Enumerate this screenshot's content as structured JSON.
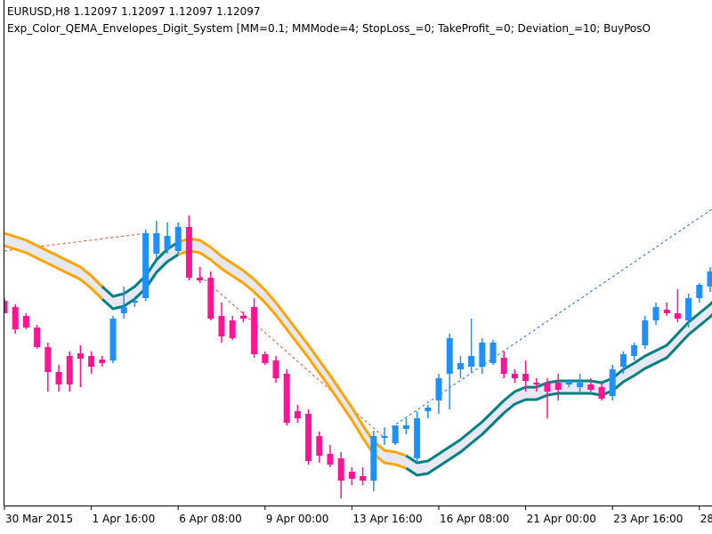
{
  "chart_data": {
    "type": "candlestick",
    "title": "EURUSD,H8  1.12097 1.12097 1.12097 1.12097",
    "subtitle": "Exp_Color_QEMA_Envelopes_Digit_System [MM=0.1; MMMode=4; StopLoss_=0; TakeProfit_=0; Deviation_=10; BuyPosO",
    "categories": [
      "30 Mar 2015",
      null,
      null,
      null,
      null,
      null,
      null,
      null,
      "1 Apr 16:00",
      null,
      null,
      null,
      null,
      null,
      null,
      null,
      "6 Apr 08:00",
      null,
      null,
      null,
      null,
      null,
      null,
      null,
      "9 Apr 00:00",
      null,
      null,
      null,
      null,
      null,
      null,
      null,
      "13 Apr 16:00",
      null,
      null,
      null,
      null,
      null,
      null,
      null,
      "16 Apr 08:00",
      null,
      null,
      null,
      null,
      null,
      null,
      null,
      "21 Apr 00:00",
      null,
      null,
      null,
      null,
      null,
      null,
      null,
      "23 Apr 16:00",
      null,
      null,
      null,
      null,
      null,
      null,
      null,
      "28",
      null,
      null
    ],
    "open": [
      1.0732,
      1.0725,
      1.0715,
      1.0702,
      1.068,
      1.0652,
      1.067,
      1.0673,
      1.067,
      1.0666,
      1.0665,
      1.0718,
      1.073,
      1.0735,
      1.0785,
      1.079,
      1.0788,
      1.0815,
      1.0758,
      1.0758,
      1.0715,
      1.071,
      1.0715,
      1.0725,
      1.0672,
      1.0665,
      1.065,
      1.0608,
      1.0605,
      1.058,
      1.056,
      1.0555,
      1.054,
      1.0535,
      1.053,
      1.0578,
      1.0572,
      1.0588,
      1.0555,
      1.0608,
      1.062,
      1.065,
      1.0655,
      1.0658,
      1.0658,
      1.0662,
      1.0668,
      1.065,
      1.065,
      1.064,
      1.064,
      1.064,
      1.0638,
      1.0635,
      1.0638,
      1.0635,
      1.0625,
      1.0658,
      1.067,
      1.0682,
      1.071,
      1.0722,
      1.0718,
      1.071,
      1.0735,
      1.0748,
      1.0758
    ],
    "high": [
      1.0735,
      1.0728,
      1.0718,
      1.0705,
      1.0685,
      1.066,
      1.0675,
      1.0682,
      1.0675,
      1.067,
      1.0715,
      1.0748,
      1.0735,
      1.0812,
      1.0822,
      1.082,
      1.082,
      1.0828,
      1.077,
      1.0765,
      1.073,
      1.0715,
      1.072,
      1.0735,
      1.0675,
      1.067,
      1.0655,
      1.0615,
      1.061,
      1.0585,
      1.057,
      1.0562,
      1.0545,
      1.0545,
      1.0586,
      1.059,
      1.0592,
      1.06,
      1.0608,
      1.0615,
      1.065,
      1.0695,
      1.067,
      1.0712,
      1.069,
      1.0688,
      1.0675,
      1.0655,
      1.0665,
      1.0645,
      1.0645,
      1.065,
      1.0642,
      1.065,
      1.0645,
      1.064,
      1.066,
      1.0675,
      1.0685,
      1.0715,
      1.073,
      1.073,
      1.0745,
      1.074,
      1.0752,
      1.077,
      1.08
    ],
    "low": [
      1.0718,
      1.0695,
      1.07,
      1.0678,
      1.063,
      1.063,
      1.063,
      1.0635,
      1.065,
      1.0658,
      1.0662,
      1.0712,
      1.0725,
      1.0732,
      1.078,
      1.0785,
      1.0785,
      1.0755,
      1.0752,
      1.071,
      1.0685,
      1.0688,
      1.0708,
      1.0668,
      1.066,
      1.064,
      1.0592,
      1.0595,
      1.0548,
      1.055,
      1.0545,
      1.051,
      1.0525,
      1.0525,
      1.0518,
      1.057,
      1.057,
      1.0582,
      1.055,
      1.06,
      1.0605,
      1.061,
      1.0645,
      1.0652,
      1.065,
      1.066,
      1.0645,
      1.064,
      1.063,
      1.063,
      1.06,
      1.062,
      1.0635,
      1.063,
      1.063,
      1.062,
      1.062,
      1.065,
      1.0665,
      1.0678,
      1.0705,
      1.0715,
      1.0708,
      1.0702,
      1.073,
      1.0742,
      1.0752
    ],
    "close": [
      1.0718,
      1.07,
      1.0702,
      1.068,
      1.0652,
      1.0638,
      1.0638,
      1.0667,
      1.0658,
      1.0662,
      1.0712,
      1.0725,
      1.0732,
      1.0808,
      1.0808,
      1.0805,
      1.0815,
      1.0758,
      1.0755,
      1.0712,
      1.0692,
      1.069,
      1.0712,
      1.0672,
      1.0662,
      1.0645,
      1.0595,
      1.06,
      1.0552,
      1.0558,
      1.0548,
      1.053,
      1.0532,
      1.053,
      1.058,
      1.058,
      1.0592,
      1.0592,
      1.06,
      1.0612,
      1.0645,
      1.069,
      1.0662,
      1.067,
      1.0685,
      1.0685,
      1.065,
      1.0645,
      1.0642,
      1.0638,
      1.063,
      1.0632,
      1.0642,
      1.064,
      1.0632,
      1.0622,
      1.0655,
      1.0672,
      1.0682,
      1.071,
      1.0725,
      1.0718,
      1.0712,
      1.0735,
      1.075,
      1.0765,
      1.079
    ],
    "bull_color": "#1e90ff",
    "bear_color": "#ff1493",
    "upper": [
      1.0808,
      1.0804,
      1.08,
      1.0794,
      1.0788,
      1.0782,
      1.0776,
      1.077,
      1.076,
      1.0748,
      1.0737,
      1.074,
      1.0748,
      1.076,
      1.0778,
      1.079,
      1.0798,
      1.0802,
      1.08,
      1.0792,
      1.0782,
      1.0774,
      1.0766,
      1.0756,
      1.0744,
      1.073,
      1.0714,
      1.0698,
      1.0682,
      1.0665,
      1.0648,
      1.063,
      1.0612,
      1.0592,
      1.0574,
      1.0564,
      1.0562,
      1.0558,
      1.055,
      1.0552,
      1.056,
      1.0568,
      1.0576,
      1.0586,
      1.0596,
      1.0608,
      1.062,
      1.063,
      1.0635,
      1.0635,
      1.064,
      1.0642,
      1.0642,
      1.0642,
      1.0642,
      1.064,
      1.0645,
      1.0655,
      1.0662,
      1.067,
      1.0676,
      1.0682,
      1.0695,
      1.0708,
      1.0718,
      1.0728,
      1.074
    ],
    "lower": [
      1.0794,
      1.079,
      1.0786,
      1.078,
      1.0774,
      1.0768,
      1.0762,
      1.0756,
      1.0746,
      1.0734,
      1.0723,
      1.0726,
      1.0734,
      1.0746,
      1.0764,
      1.0776,
      1.0784,
      1.0788,
      1.0786,
      1.0778,
      1.0768,
      1.076,
      1.0752,
      1.0742,
      1.073,
      1.0716,
      1.07,
      1.0684,
      1.0668,
      1.0651,
      1.0634,
      1.0616,
      1.0598,
      1.0578,
      1.056,
      1.055,
      1.0548,
      1.0544,
      1.0536,
      1.0538,
      1.0546,
      1.0554,
      1.0562,
      1.0572,
      1.0582,
      1.0594,
      1.0606,
      1.0616,
      1.0621,
      1.0621,
      1.0626,
      1.0628,
      1.0628,
      1.0628,
      1.0628,
      1.0626,
      1.0631,
      1.0641,
      1.0648,
      1.0656,
      1.0662,
      1.0668,
      1.0681,
      1.0694,
      1.0704,
      1.0714,
      1.0726
    ],
    "band_colors": [
      "#ffa500",
      "#ffa500",
      "#ffa500",
      "#ffa500",
      "#ffa500",
      "#ffa500",
      "#ffa500",
      "#ffa500",
      "#ffa500",
      "#ffa500",
      "#008080",
      "#008080",
      "#008080",
      "#008080",
      "#008080",
      "#008080",
      "#008080",
      "#ffa500",
      "#ffa500",
      "#ffa500",
      "#ffa500",
      "#ffa500",
      "#ffa500",
      "#ffa500",
      "#ffa500",
      "#ffa500",
      "#ffa500",
      "#ffa500",
      "#ffa500",
      "#ffa500",
      "#ffa500",
      "#ffa500",
      "#ffa500",
      "#ffa500",
      "#ffa500",
      "#ffa500",
      "#ffa500",
      "#ffa500",
      "#008080",
      "#008080",
      "#008080",
      "#008080",
      "#008080",
      "#008080",
      "#008080",
      "#008080",
      "#008080",
      "#008080",
      "#008080",
      "#008080",
      "#008080",
      "#008080",
      "#008080",
      "#008080",
      "#008080",
      "#008080",
      "#008080",
      "#008080",
      "#008080",
      "#008080",
      "#008080",
      "#008080",
      "#008080",
      "#008080",
      "#008080",
      "#008080",
      "#008080"
    ],
    "band_fill": "#e8e8f2",
    "ylim": [
      1.05,
      1.105
    ]
  }
}
